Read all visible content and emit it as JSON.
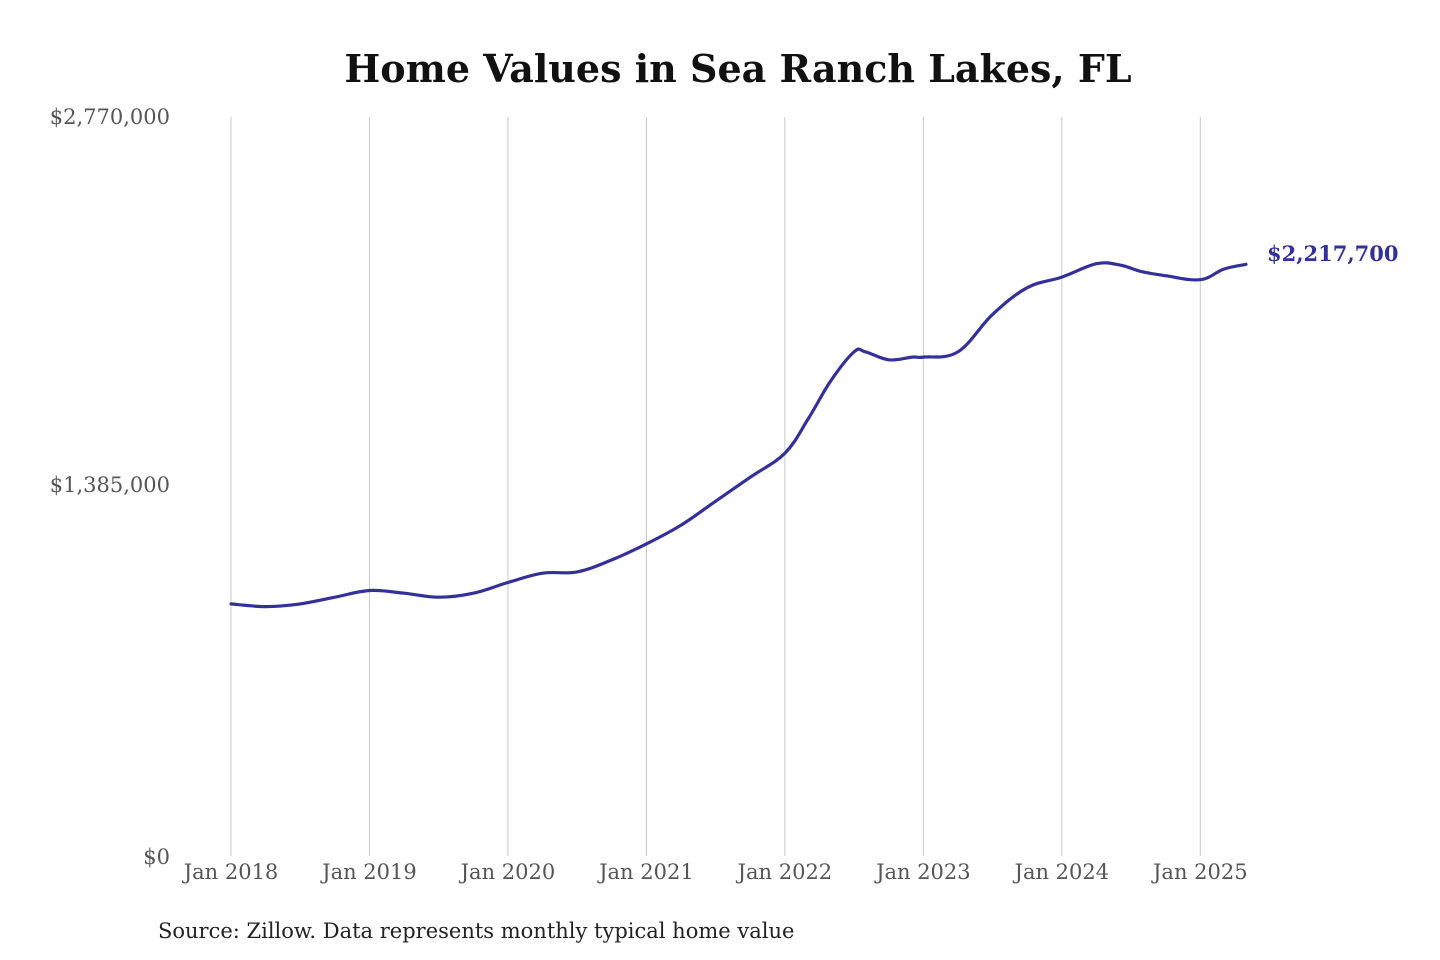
{
  "chart_data": {
    "type": "line",
    "title": "Home Values in Sea Ranch Lakes, FL",
    "source": "Source: Zillow. Data represents monthly typical home value",
    "ylim": [
      0,
      2770000
    ],
    "yticks": [
      "$0",
      "$1,385,000",
      "$2,770,000"
    ],
    "ytick_values": [
      0,
      1385000,
      2770000
    ],
    "xticks": [
      "Jan 2018",
      "Jan 2019",
      "Jan 2020",
      "Jan 2021",
      "Jan 2022",
      "Jan 2023",
      "Jan 2024",
      "Jan 2025"
    ],
    "xtick_values": [
      2018,
      2019,
      2020,
      2021,
      2022,
      2023,
      2024,
      2025
    ],
    "xlim": [
      2018,
      2025.33
    ],
    "grid": "vertical",
    "end_label": "$2,217,700",
    "line_color": "#34309a",
    "series": [
      {
        "name": "Typical home value",
        "x": [
          2018.0,
          2018.25,
          2018.5,
          2018.75,
          2019.0,
          2019.25,
          2019.5,
          2019.75,
          2020.0,
          2020.25,
          2020.5,
          2020.75,
          2021.0,
          2021.25,
          2021.5,
          2021.75,
          2022.0,
          2022.17,
          2022.33,
          2022.5,
          2022.58,
          2022.75,
          2022.92,
          2023.0,
          2023.25,
          2023.5,
          2023.75,
          2024.0,
          2024.25,
          2024.42,
          2024.58,
          2024.75,
          2025.0,
          2025.17,
          2025.33
        ],
        "values": [
          945000,
          935000,
          945000,
          970000,
          995000,
          985000,
          970000,
          985000,
          1025000,
          1060000,
          1065000,
          1110000,
          1170000,
          1240000,
          1330000,
          1420000,
          1510000,
          1640000,
          1780000,
          1890000,
          1890000,
          1860000,
          1870000,
          1870000,
          1890000,
          2030000,
          2130000,
          2170000,
          2220000,
          2215000,
          2190000,
          2175000,
          2160000,
          2200000,
          2217700
        ]
      }
    ]
  }
}
